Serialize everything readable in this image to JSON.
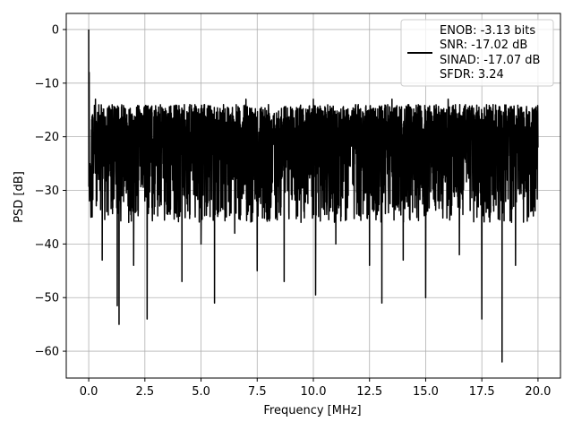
{
  "chart_data": {
    "type": "line",
    "xlabel": "Frequency [MHz]",
    "ylabel": "PSD [dB]",
    "xlim": [
      -1.0,
      21.0
    ],
    "ylim": [
      -65,
      3
    ],
    "x_ticks": [
      0.0,
      2.5,
      5.0,
      7.5,
      10.0,
      12.5,
      15.0,
      17.5,
      20.0
    ],
    "x_tick_labels": [
      "0.0",
      "2.5",
      "5.0",
      "7.5",
      "10.0",
      "12.5",
      "15.0",
      "17.5",
      "20.0"
    ],
    "y_ticks": [
      0,
      -10,
      -20,
      -30,
      -40,
      -50,
      -60
    ],
    "y_tick_labels": [
      "0",
      "−10",
      "−20",
      "−30",
      "−40",
      "−50",
      "−60"
    ],
    "grid": true,
    "legend_position": "top-right",
    "legend_lines": [
      "ENOB: -3.13 bits",
      "SNR: -17.02 dB",
      "SINAD: -17.07 dB",
      "SFDR: 3.24"
    ],
    "series": [
      {
        "color": "#000000",
        "description": "Noise-like PSD spectrum, 0 to 20 MHz; peak of 0 dB at DC, envelope roughly -13 to -36 dB with a mean near -22 dB, deep notches down to about -62 dB",
        "x": [
          0.0,
          0.02,
          0.05,
          0.1,
          0.2,
          0.3,
          0.5,
          0.6,
          1.0,
          1.27,
          1.35,
          1.5,
          2.0,
          2.6,
          3.0,
          3.3,
          4.0,
          4.15,
          4.5,
          5.0,
          5.5,
          5.6,
          6.0,
          6.5,
          7.0,
          7.5,
          8.0,
          8.7,
          9.0,
          10.0,
          10.1,
          10.5,
          11.0,
          12.0,
          12.5,
          13.0,
          13.05,
          13.5,
          14.0,
          14.5,
          15.0,
          15.2,
          16.0,
          16.5,
          17.0,
          17.5,
          18.0,
          18.4,
          18.5,
          19.0,
          19.8,
          20.0
        ],
        "y": [
          0.0,
          -8.0,
          -25.0,
          -35.0,
          -22.0,
          -13.0,
          -30.0,
          -43.0,
          -15.0,
          -51.5,
          -55.0,
          -22.0,
          -44.0,
          -54.0,
          -15.0,
          -25.0,
          -20.0,
          -47.0,
          -14.0,
          -40.0,
          -20.0,
          -51.0,
          -14.0,
          -38.0,
          -13.0,
          -45.0,
          -14.0,
          -47.0,
          -22.0,
          -13.0,
          -49.5,
          -16.0,
          -40.0,
          -14.0,
          -44.0,
          -20.0,
          -51.0,
          -13.0,
          -43.0,
          -20.0,
          -50.0,
          -22.0,
          -13.0,
          -42.0,
          -20.0,
          -54.0,
          -14.0,
          -62.0,
          -25.0,
          -44.0,
          -15.0,
          -22.0
        ]
      }
    ]
  }
}
